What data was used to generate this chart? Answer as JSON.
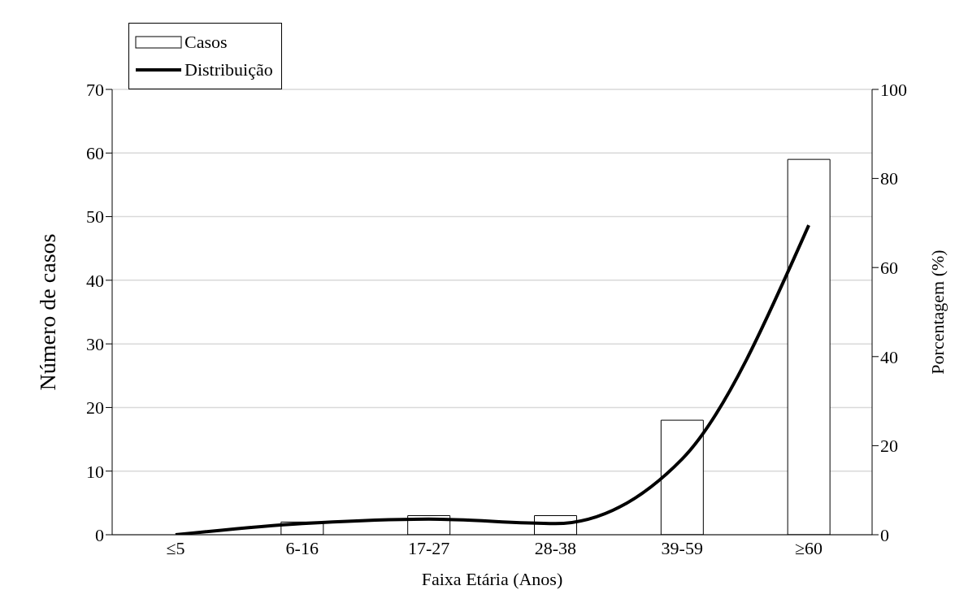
{
  "chart_data": {
    "type": "bar",
    "xlabel": "Faixa Etária (Anos)",
    "ylabel": "Número de casos",
    "y2label": "Porcentagem (%)",
    "categories": [
      "≤5",
      "6-16",
      "17-27",
      "28-38",
      "39-59",
      "≥60"
    ],
    "series": [
      {
        "name": "Casos",
        "color": "#ffffff",
        "values": [
          0,
          2,
          3,
          3,
          18,
          59
        ]
      },
      {
        "name": "Distribuição",
        "type": "line",
        "axis": "y2",
        "color": "#000000",
        "values": [
          0,
          2.5,
          3.5,
          2.5,
          17,
          69.5
        ]
      }
    ],
    "ylim": [
      0,
      70
    ],
    "yticks": [
      0,
      10,
      20,
      30,
      40,
      50,
      60,
      70
    ],
    "y2lim": [
      0,
      100
    ],
    "y2ticks": [
      0,
      20,
      40,
      60,
      80,
      100
    ],
    "grid": "y",
    "legend": "top left",
    "marker": "none",
    "line_style": "solid"
  }
}
